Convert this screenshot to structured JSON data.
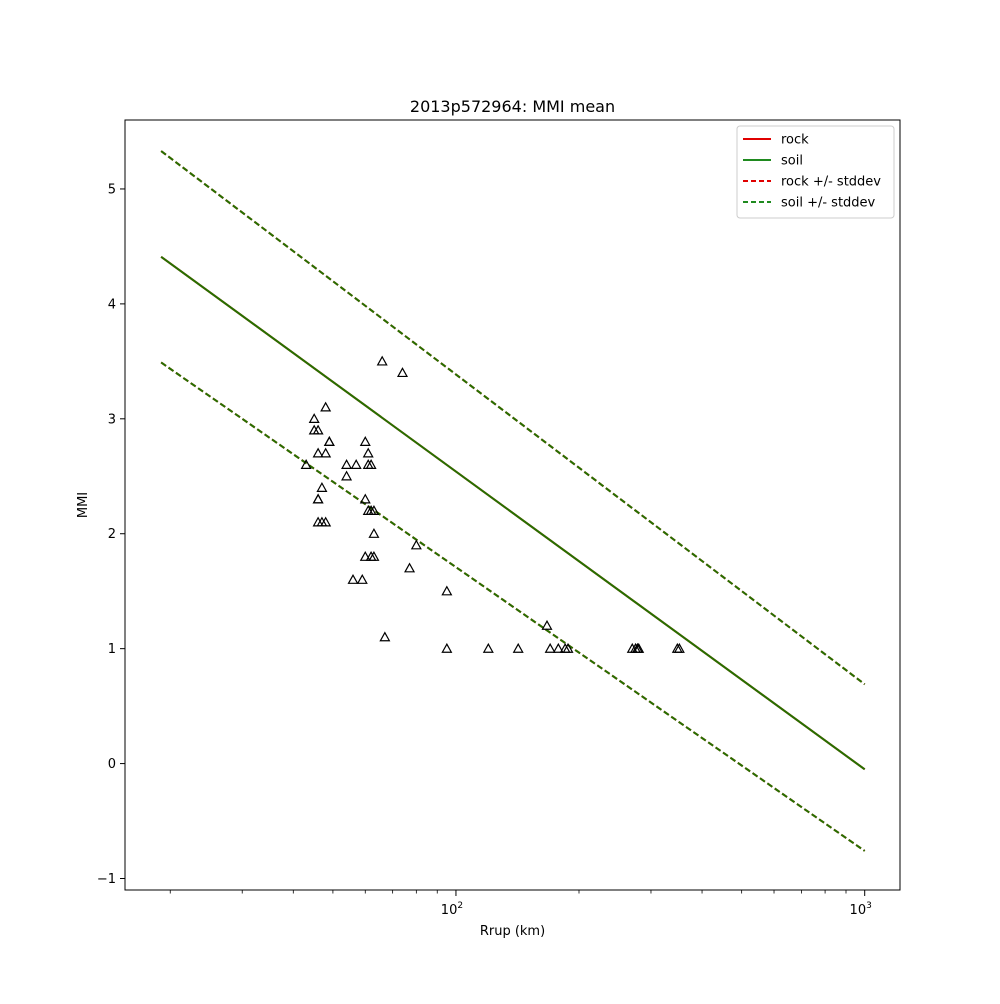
{
  "chart_data": {
    "type": "scatter",
    "title": "2013p572964: MMI mean",
    "xlabel": "Rrup (km)",
    "ylabel": "MMI",
    "xscale": "log",
    "xlim": [
      15.5,
      1220
    ],
    "ylim": [
      -1.1,
      5.6
    ],
    "yticks": [
      -1,
      0,
      1,
      2,
      3,
      4,
      5
    ],
    "xticks": [
      {
        "value": 100,
        "base": "10",
        "exp": "2"
      },
      {
        "value": 1000,
        "base": "10",
        "exp": "3"
      }
    ],
    "grid": false,
    "legend": {
      "placement": "top-right",
      "entries": [
        {
          "label": "rock",
          "color": "#e00000",
          "style": "solid"
        },
        {
          "label": "soil",
          "color": "#1f8a1f",
          "style": "solid"
        },
        {
          "label": "rock +/- stddev",
          "color": "#e00000",
          "style": "dashed"
        },
        {
          "label": "soil +/- stddev",
          "color": "#1f8a1f",
          "style": "dashed"
        }
      ]
    },
    "lines": [
      {
        "name": "rock",
        "color": "#e00000",
        "style": "solid",
        "x": [
          19,
          1000
        ],
        "y": [
          4.41,
          -0.05
        ]
      },
      {
        "name": "soil",
        "color": "#267000",
        "style": "solid",
        "x": [
          19,
          1000
        ],
        "y": [
          4.41,
          -0.05
        ]
      },
      {
        "name": "rock +/- stddev",
        "color": "#e00000",
        "style": "dashed",
        "x": [
          19,
          1000
        ],
        "y": [
          5.33,
          0.69
        ]
      },
      {
        "name": "rock +/- stddev",
        "color": "#e00000",
        "style": "dashed",
        "x": [
          19,
          1000
        ],
        "y": [
          3.49,
          -0.76
        ]
      },
      {
        "name": "soil +/- stddev",
        "color": "#267000",
        "style": "dashed",
        "x": [
          19,
          1000
        ],
        "y": [
          5.33,
          0.69
        ]
      },
      {
        "name": "soil +/- stddev",
        "color": "#267000",
        "style": "dashed",
        "x": [
          19,
          1000
        ],
        "y": [
          3.49,
          -0.76
        ]
      }
    ],
    "points": {
      "marker": "triangle",
      "color": "#000000",
      "x": [
        66,
        74,
        48,
        45,
        45,
        46,
        49,
        49,
        60,
        46,
        48,
        54,
        57,
        61,
        62,
        61,
        54,
        43,
        47,
        60,
        46,
        46,
        63,
        62,
        61,
        47,
        46,
        48,
        63,
        80,
        60,
        63,
        62,
        56,
        59,
        77,
        95,
        67,
        95,
        120,
        142,
        167,
        170,
        178,
        185,
        188,
        270,
        275,
        278,
        280,
        348,
        352
      ],
      "y": [
        3.5,
        3.4,
        3.1,
        3.0,
        2.9,
        2.9,
        2.8,
        2.8,
        2.8,
        2.7,
        2.7,
        2.6,
        2.6,
        2.6,
        2.6,
        2.7,
        2.5,
        2.6,
        2.4,
        2.3,
        2.3,
        2.3,
        2.2,
        2.2,
        2.2,
        2.1,
        2.1,
        2.1,
        2.0,
        1.9,
        1.8,
        1.8,
        1.8,
        1.6,
        1.6,
        1.7,
        1.5,
        1.1,
        1.0,
        1.0,
        1.0,
        1.2,
        1.0,
        1.0,
        1.0,
        1.0,
        1.0,
        1.0,
        1.0,
        1.0,
        1.0,
        1.0
      ]
    }
  }
}
